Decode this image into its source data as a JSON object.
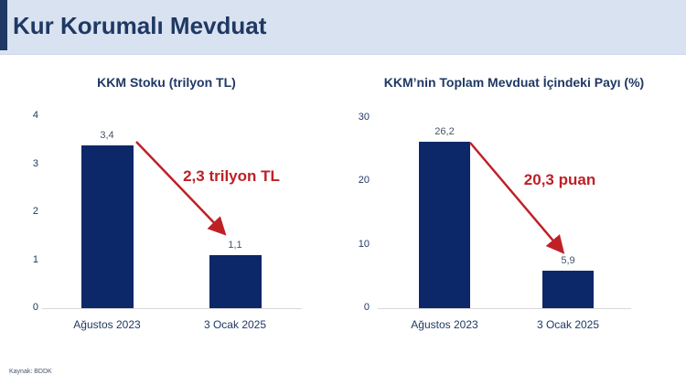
{
  "header": {
    "title": "Kur Korumalı Mevduat"
  },
  "source": "Kaynak: BDDK",
  "colors": {
    "header_bg": "#d9e2f0",
    "accent_navy": "#1f3864",
    "bar_navy": "#0d2868",
    "annotation_red": "#bf2026",
    "value_label": "#44546a",
    "baseline_gray": "#d9d9d9"
  },
  "chart_data": [
    {
      "type": "bar",
      "title": "KKM Stoku (trilyon TL)",
      "categories": [
        "Ağustos 2023",
        "3 Ocak 2025"
      ],
      "values": [
        3.4,
        1.1
      ],
      "value_labels": [
        "3,4",
        "1,1"
      ],
      "annotation": "2,3 trilyon TL",
      "ylim": [
        0,
        4
      ],
      "yticks": [
        0,
        1,
        2,
        3,
        4
      ],
      "grid": false,
      "legend": "none",
      "bar_color": "#0d2868"
    },
    {
      "type": "bar",
      "title": "KKM’nin Toplam Mevduat İçindeki Payı (%)",
      "categories": [
        "Ağustos 2023",
        "3 Ocak 2025"
      ],
      "values": [
        26.2,
        5.9
      ],
      "value_labels": [
        "26,2",
        "5,9"
      ],
      "annotation": "20,3 puan",
      "ylim": [
        0,
        30
      ],
      "yticks": [
        0,
        10,
        20,
        30
      ],
      "grid": false,
      "legend": "none",
      "bar_color": "#0d2868"
    }
  ]
}
